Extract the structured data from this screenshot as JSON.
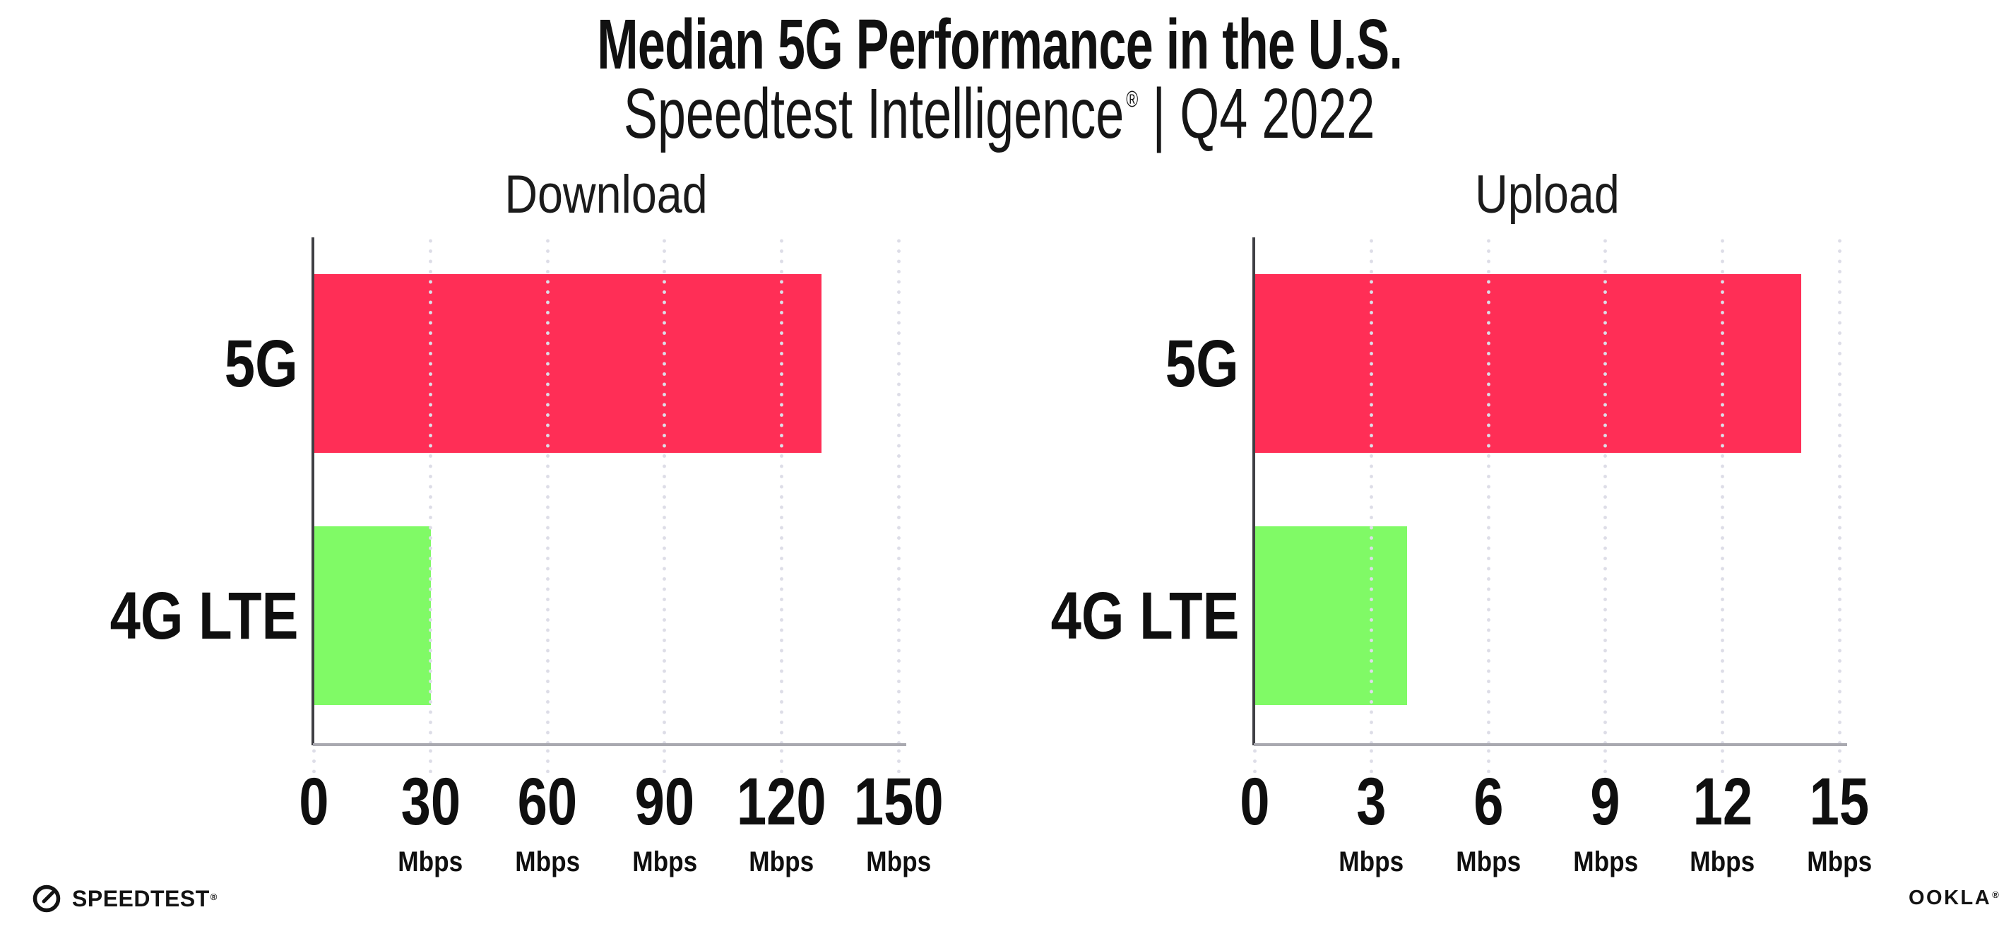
{
  "header": {
    "title": "Median 5G Performance in the U.S.",
    "subtitle_product": "Speedtest Intelligence",
    "subtitle_reg": "®",
    "subtitle_separator": "|",
    "subtitle_period": "Q4 2022"
  },
  "footer": {
    "speedtest_text": "SPEEDTEST",
    "speedtest_mark": "®",
    "ookla_text": "OOKLA",
    "ookla_mark": "®"
  },
  "colors": {
    "bar_5g": "#FF2E56",
    "bar_4g_lte": "#80FA66",
    "y_axis": "#3f3f44",
    "x_axis": "#a9a9b0",
    "gridline": "#dddde7",
    "text": "#111111"
  },
  "chart_data": [
    {
      "type": "bar",
      "orientation": "horizontal",
      "title": "Download",
      "categories": [
        "5G",
        "4G LTE"
      ],
      "values": [
        130,
        29.9
      ],
      "unit": "Mbps",
      "xlim": [
        0,
        150
      ],
      "xticks": [
        0,
        30,
        60,
        90,
        120,
        150
      ],
      "xtick_unit": "Mbps",
      "grid": "vertical-dotted",
      "legend": "none"
    },
    {
      "type": "bar",
      "orientation": "horizontal",
      "title": "Upload",
      "categories": [
        "5G",
        "4G LTE"
      ],
      "values": [
        14,
        3.9
      ],
      "unit": "Mbps",
      "xlim": [
        0,
        15
      ],
      "xticks": [
        0,
        3,
        6,
        9,
        12,
        15
      ],
      "xtick_unit": "Mbps",
      "grid": "vertical-dotted",
      "legend": "none"
    }
  ]
}
